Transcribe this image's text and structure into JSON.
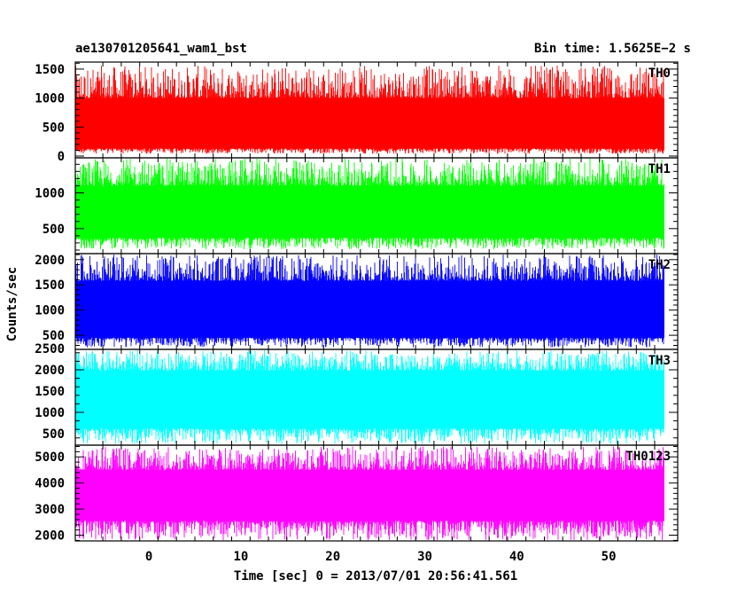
{
  "header": {
    "obs_id": "ae130701205641_wam1_bst",
    "bin_time": "Bin time: 1.5625E−2 s"
  },
  "chart_data": {
    "type": "line",
    "title": "ae130701205641_wam1_bst",
    "subtitle": "Bin time: 1.5625E−2 s",
    "xlabel": "Time [sec] 0 = 2013/07/01 20:56:41.561",
    "ylabel": "Counts/sec",
    "xlim": [
      -8.0,
      57.5
    ],
    "x_ticks": [
      0,
      10,
      20,
      30,
      40,
      50
    ],
    "x_data_range": [
      -8.0,
      56.0
    ],
    "bin_time": 0.015625,
    "grid": false,
    "panels": [
      {
        "name": "TH0",
        "color": "#ff0000",
        "ylim": [
          -30,
          1620
        ],
        "y_ticks": [
          0,
          500,
          1000,
          1500
        ],
        "band_low": 130,
        "band_high": 1000,
        "spike_min": 40,
        "spike_max": 1560
      },
      {
        "name": "TH1",
        "color": "#00ff00",
        "ylim": [
          150,
          1490
        ],
        "y_ticks": [
          500,
          1000
        ],
        "band_low": 370,
        "band_high": 1100,
        "spike_min": 210,
        "spike_max": 1480
      },
      {
        "name": "TH2",
        "color": "#0000ff",
        "ylim": [
          220,
          2120
        ],
        "y_ticks": [
          500,
          1000,
          1500,
          2000
        ],
        "band_low": 450,
        "band_high": 1580,
        "spike_min": 260,
        "spike_max": 2100
      },
      {
        "name": "TH3",
        "color": "#00ffff",
        "ylim": [
          230,
          2480
        ],
        "y_ticks": [
          500,
          1000,
          1500,
          2000,
          2500
        ],
        "band_low": 620,
        "band_high": 1980,
        "spike_min": 260,
        "spike_max": 2460
      },
      {
        "name": "TH0123",
        "color": "#ff00ff",
        "ylim": [
          1780,
          5450
        ],
        "y_ticks": [
          2000,
          3000,
          4000,
          5000
        ],
        "band_low": 2550,
        "band_high": 4500,
        "spike_min": 1800,
        "spike_max": 5400
      }
    ]
  }
}
